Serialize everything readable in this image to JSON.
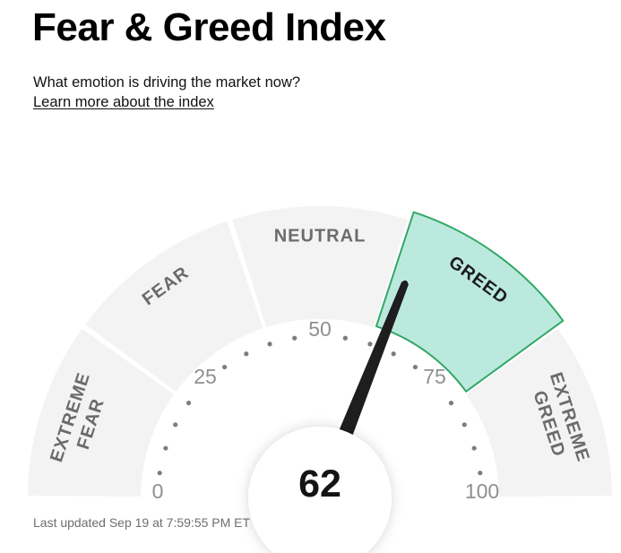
{
  "header": {
    "title": "Fear & Greed Index",
    "subtitle": "What emotion is driving the market now?",
    "link_label": "Learn more about the index"
  },
  "footer": {
    "last_updated": "Last updated Sep 19 at 7:59:55 PM ET"
  },
  "chart_data": {
    "type": "gauge",
    "title": "Fear & Greed Index",
    "value": 62,
    "value_label": "62",
    "min": 0,
    "max": 100,
    "current_mood": "GREED",
    "major_ticks": [
      0,
      25,
      50,
      75,
      100
    ],
    "minor_tick_step": 5,
    "segments": [
      {
        "label": "EXTREME FEAR",
        "label_lines": [
          "EXTREME",
          "FEAR"
        ],
        "highlighted": false
      },
      {
        "label": "FEAR",
        "label_lines": [
          "FEAR"
        ],
        "highlighted": false
      },
      {
        "label": "NEUTRAL",
        "label_lines": [
          "NEUTRAL"
        ],
        "highlighted": false
      },
      {
        "label": "GREED",
        "label_lines": [
          "GREED"
        ],
        "highlighted": true
      },
      {
        "label": "EXTREME GREED",
        "label_lines": [
          "EXTREME",
          "GREED"
        ],
        "highlighted": false
      }
    ],
    "colors": {
      "segment_fill": "#f3f3f3",
      "highlight_fill": "#bce9de",
      "highlight_stroke": "#31a866",
      "segment_label": "#6b6b6b",
      "highlight_label": "#1c1c1c",
      "tick_label": "#8f8f8f",
      "tick_dot": "#7d7d7d",
      "needle": "#1e1e1e",
      "value_text": "#141414",
      "center_circle": "#ffffff"
    }
  }
}
